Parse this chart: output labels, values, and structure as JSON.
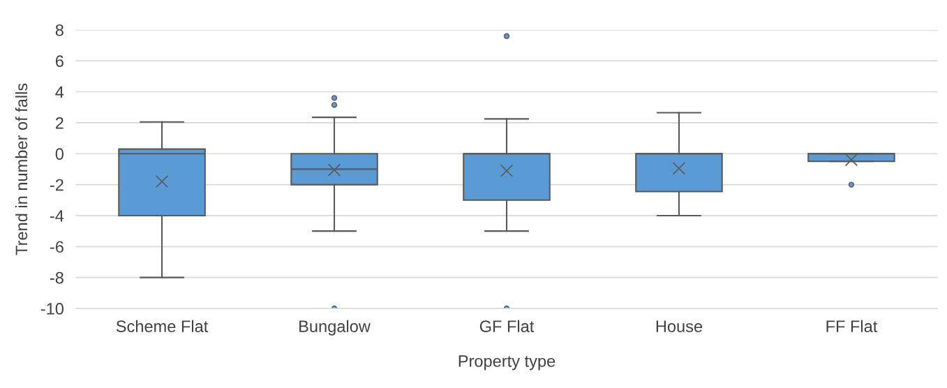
{
  "chart_data": {
    "type": "box",
    "xlabel": "Property type",
    "ylabel": "Trend in number of falls",
    "categories": [
      "Scheme Flat",
      "Bungalow",
      "GF Flat",
      "House",
      "FF Flat"
    ],
    "color": "#5b9bd5",
    "boxes": [
      {
        "low": -8,
        "q1": -4,
        "median": 0,
        "q3": 0.3,
        "high": 2.05,
        "mean": -1.8
      },
      {
        "low": -5,
        "q1": -2,
        "median": -1,
        "q3": 0,
        "high": 2.35,
        "mean": -1.05,
        "outliers": [
          3.6,
          3.15,
          -10
        ]
      },
      {
        "low": -5,
        "q1": -3,
        "median": 0,
        "q3": 0,
        "high": 2.25,
        "mean": -1.1,
        "outliers": [
          7.6,
          -10
        ]
      },
      {
        "low": -4,
        "q1": -2.45,
        "median": 0,
        "q3": 0,
        "high": 2.65,
        "mean": -0.95
      },
      {
        "low": -0.5,
        "q1": -0.5,
        "median": 0,
        "q3": 0,
        "high": 0,
        "mean": -0.4,
        "outliers": [
          -2
        ]
      }
    ],
    "ylim": [
      -10,
      8
    ],
    "yticks": [
      -10,
      -8,
      -6,
      -4,
      -2,
      0,
      2,
      4,
      6,
      8
    ],
    "grid": "y"
  }
}
